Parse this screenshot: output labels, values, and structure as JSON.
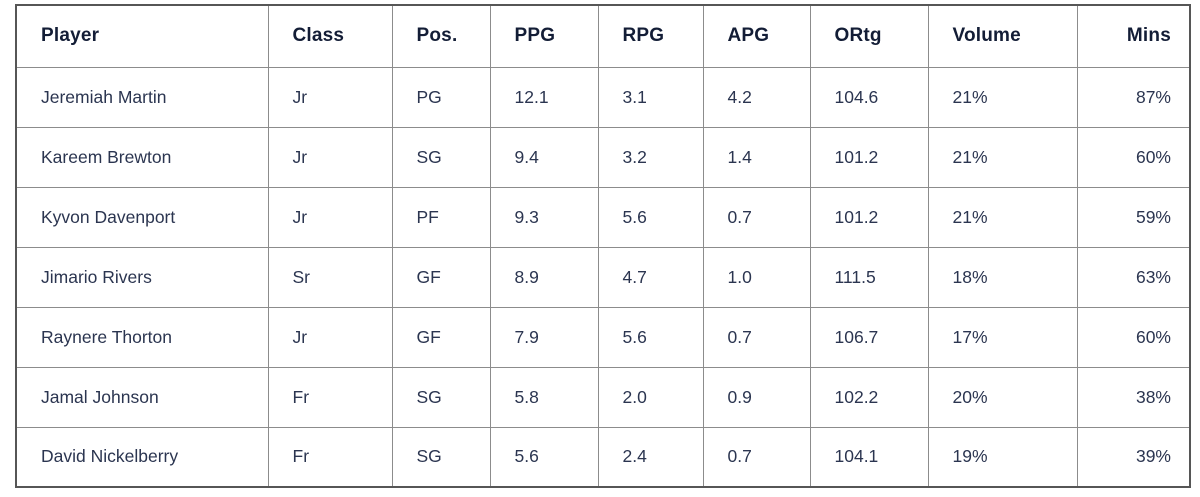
{
  "colors": {
    "header_text": "#131d36",
    "body_text": "#2b3550",
    "inner_border": "#8c8c8c",
    "outer_border": "#565656",
    "background": "#ffffff"
  },
  "table": {
    "columns": [
      {
        "key": "player",
        "label": "Player",
        "align": "left"
      },
      {
        "key": "class",
        "label": "Class",
        "align": "left"
      },
      {
        "key": "pos",
        "label": "Pos.",
        "align": "left"
      },
      {
        "key": "ppg",
        "label": "PPG",
        "align": "left"
      },
      {
        "key": "rpg",
        "label": "RPG",
        "align": "left"
      },
      {
        "key": "apg",
        "label": "APG",
        "align": "left"
      },
      {
        "key": "ortg",
        "label": "ORtg",
        "align": "left"
      },
      {
        "key": "volume",
        "label": "Volume",
        "align": "left"
      },
      {
        "key": "mins",
        "label": "Mins",
        "align": "right"
      }
    ],
    "rows": [
      {
        "player": "Jeremiah Martin",
        "class": "Jr",
        "pos": "PG",
        "ppg": "12.1",
        "rpg": "3.1",
        "apg": "4.2",
        "ortg": "104.6",
        "volume": "21%",
        "mins": "87%"
      },
      {
        "player": "Kareem Brewton",
        "class": "Jr",
        "pos": "SG",
        "ppg": "9.4",
        "rpg": "3.2",
        "apg": "1.4",
        "ortg": "101.2",
        "volume": "21%",
        "mins": "60%"
      },
      {
        "player": "Kyvon Davenport",
        "class": "Jr",
        "pos": "PF",
        "ppg": "9.3",
        "rpg": "5.6",
        "apg": "0.7",
        "ortg": "101.2",
        "volume": "21%",
        "mins": "59%"
      },
      {
        "player": "Jimario Rivers",
        "class": "Sr",
        "pos": "GF",
        "ppg": "8.9",
        "rpg": "4.7",
        "apg": "1.0",
        "ortg": "111.5",
        "volume": "18%",
        "mins": "63%"
      },
      {
        "player": "Raynere Thorton",
        "class": "Jr",
        "pos": "GF",
        "ppg": "7.9",
        "rpg": "5.6",
        "apg": "0.7",
        "ortg": "106.7",
        "volume": "17%",
        "mins": "60%"
      },
      {
        "player": "Jamal Johnson",
        "class": "Fr",
        "pos": "SG",
        "ppg": "5.8",
        "rpg": "2.0",
        "apg": "0.9",
        "ortg": "102.2",
        "volume": "20%",
        "mins": "38%"
      },
      {
        "player": "David Nickelberry",
        "class": "Fr",
        "pos": "SG",
        "ppg": "5.6",
        "rpg": "2.4",
        "apg": "0.7",
        "ortg": "104.1",
        "volume": "19%",
        "mins": "39%"
      }
    ]
  }
}
